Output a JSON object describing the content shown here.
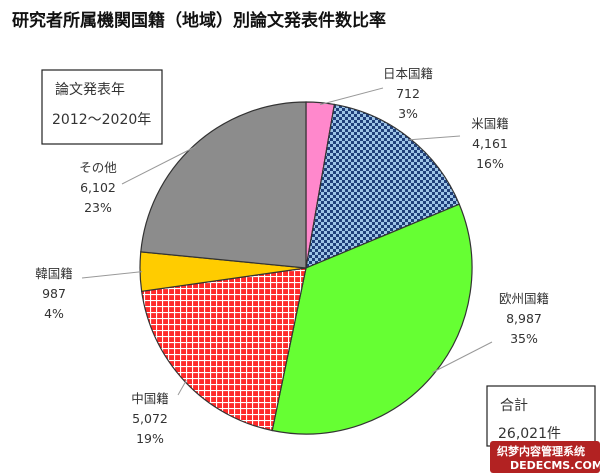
{
  "chart_data": {
    "type": "pie",
    "title": "研究者所属機関国籍（地域）別論文発表件数比率",
    "period_box": {
      "line1": "論文発表年",
      "line2": "2012～2020年"
    },
    "total_box": {
      "line1": "合計",
      "line2": "26,021件"
    },
    "slices": [
      {
        "name": "日本国籍",
        "count": 712,
        "count_label": "712",
        "percent": 3,
        "percent_label": "3%",
        "color": "#ff88cc",
        "pattern": "none"
      },
      {
        "name": "米国籍",
        "count": 4161,
        "count_label": "4,161",
        "percent": 16,
        "percent_label": "16%",
        "color": "#9dc3e6",
        "pattern": "checker-navy"
      },
      {
        "name": "欧州国籍",
        "count": 8987,
        "count_label": "8,987",
        "percent": 35,
        "percent_label": "35%",
        "color": "#66ff33",
        "pattern": "none"
      },
      {
        "name": "中国籍",
        "count": 5072,
        "count_label": "5,072",
        "percent": 19,
        "percent_label": "19%",
        "color": "#ff2a2a",
        "pattern": "grid-white"
      },
      {
        "name": "韓国籍",
        "count": 987,
        "count_label": "987",
        "percent": 4,
        "percent_label": "4%",
        "color": "#ffcc00",
        "pattern": "none"
      },
      {
        "name": "その他",
        "count": 6102,
        "count_label": "6,102",
        "percent": 23,
        "percent_label": "23%",
        "color": "#8c8c8c",
        "pattern": "none"
      }
    ],
    "start": "12 o'clock",
    "direction": "clockwise"
  },
  "watermark": {
    "line1": "织梦内容管理系统",
    "line2": "DEDECMS.COM"
  }
}
